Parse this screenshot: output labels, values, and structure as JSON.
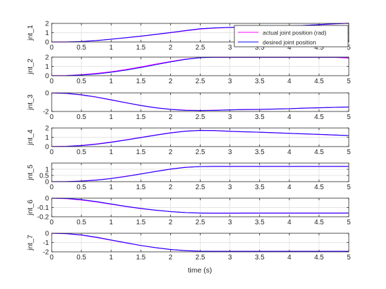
{
  "figure": {
    "background": "#ffffff",
    "axes_color": "#262626",
    "grid_color": "#dcdcdc"
  },
  "legend": {
    "placement": "top-right of first axes",
    "entries": [
      {
        "label": "actual joint position (rad)",
        "color": "#ff00ff"
      },
      {
        "label": "desired joint position",
        "color": "#0000ff"
      }
    ]
  },
  "chart_data": {
    "type": "line",
    "xlabel": "time (s)",
    "xlim": [
      0,
      5
    ],
    "xticks": [
      0,
      0.5,
      1,
      1.5,
      2,
      2.5,
      3,
      3.5,
      4,
      4.5,
      5
    ],
    "xtick_labels": [
      "0",
      "0.5",
      "1",
      "1.5",
      "2",
      "2.5",
      "3",
      "3.5",
      "4",
      "4.5",
      "5"
    ],
    "grid": true,
    "x": [
      0,
      0.25,
      0.5,
      0.75,
      1,
      1.25,
      1.5,
      1.75,
      2,
      2.25,
      2.5,
      2.75,
      3,
      3.25,
      3.5,
      3.75,
      4,
      4.25,
      4.5,
      4.75,
      5
    ],
    "subplots": [
      {
        "ylabel": "jnt_1",
        "ylim": [
          0,
          2
        ],
        "yticks": [
          0,
          1,
          2
        ],
        "ytick_labels": [
          "0",
          "1",
          "2"
        ],
        "series": [
          {
            "name": "actual joint position (rad)",
            "color": "#ff00ff",
            "values": [
              0,
              0,
              0.05,
              0.15,
              0.3,
              0.45,
              0.62,
              0.8,
              1.0,
              1.2,
              1.4,
              1.5,
              1.56,
              1.58,
              1.62,
              1.66,
              1.72,
              1.78,
              1.86,
              1.94,
              2.02
            ]
          },
          {
            "name": "desired joint position",
            "color": "#0000ff",
            "values": [
              0,
              0,
              0.05,
              0.15,
              0.3,
              0.46,
              0.63,
              0.82,
              1.02,
              1.23,
              1.43,
              1.52,
              1.57,
              1.59,
              1.63,
              1.67,
              1.73,
              1.79,
              1.87,
              1.95,
              2.02
            ]
          }
        ]
      },
      {
        "ylabel": "jnt_2",
        "ylim": [
          0,
          2
        ],
        "yticks": [
          0,
          1,
          2
        ],
        "ytick_labels": [
          "0",
          "1",
          "2"
        ],
        "series": [
          {
            "name": "actual joint position (rad)",
            "color": "#ff00ff",
            "values": [
              0,
              0.02,
              0.1,
              0.24,
              0.42,
              0.66,
              0.94,
              1.24,
              1.52,
              1.78,
              1.95,
              1.98,
              1.98,
              1.98,
              1.98,
              1.98,
              1.98,
              1.98,
              1.98,
              1.98,
              1.9
            ]
          },
          {
            "name": "desired joint position",
            "color": "#0000ff",
            "values": [
              0,
              0.01,
              0.07,
              0.19,
              0.37,
              0.6,
              0.88,
              1.18,
              1.48,
              1.75,
              1.94,
              1.98,
              1.98,
              1.98,
              1.98,
              1.98,
              1.98,
              1.98,
              1.98,
              1.98,
              1.98
            ]
          }
        ]
      },
      {
        "ylabel": "jnt_3",
        "ylim": [
          -2,
          0
        ],
        "yticks": [
          -2,
          0
        ],
        "ytick_labels": [
          "-2",
          "0"
        ],
        "series": [
          {
            "name": "actual joint position (rad)",
            "color": "#ff00ff",
            "values": [
              0,
              -0.06,
              -0.22,
              -0.46,
              -0.76,
              -1.07,
              -1.36,
              -1.6,
              -1.77,
              -1.86,
              -1.9,
              -1.87,
              -1.82,
              -1.79,
              -1.78,
              -1.74,
              -1.7,
              -1.64,
              -1.6,
              -1.56,
              -1.52
            ]
          },
          {
            "name": "desired joint position",
            "color": "#0000ff",
            "values": [
              0,
              -0.05,
              -0.2,
              -0.44,
              -0.74,
              -1.05,
              -1.35,
              -1.6,
              -1.78,
              -1.88,
              -1.9,
              -1.88,
              -1.83,
              -1.8,
              -1.78,
              -1.74,
              -1.7,
              -1.64,
              -1.6,
              -1.56,
              -1.52
            ]
          }
        ]
      },
      {
        "ylabel": "jnt_4",
        "ylim": [
          0,
          2
        ],
        "yticks": [
          0,
          1,
          2
        ],
        "ytick_labels": [
          "0",
          "1",
          "2"
        ],
        "series": [
          {
            "name": "actual joint position (rad)",
            "color": "#ff00ff",
            "values": [
              0,
              0.03,
              0.12,
              0.28,
              0.48,
              0.72,
              0.98,
              1.24,
              1.48,
              1.66,
              1.74,
              1.71,
              1.64,
              1.58,
              1.54,
              1.48,
              1.42,
              1.36,
              1.3,
              1.24,
              1.18
            ]
          },
          {
            "name": "desired joint position",
            "color": "#0000ff",
            "values": [
              0,
              0.02,
              0.1,
              0.25,
              0.45,
              0.7,
              0.96,
              1.22,
              1.46,
              1.65,
              1.74,
              1.72,
              1.65,
              1.59,
              1.55,
              1.49,
              1.43,
              1.37,
              1.31,
              1.25,
              1.19
            ]
          }
        ]
      },
      {
        "ylabel": "jnt_5",
        "ylim": [
          0,
          1.5
        ],
        "yticks": [
          0,
          0.5,
          1
        ],
        "ytick_labels": [
          "0",
          "0.5",
          "1"
        ],
        "series": [
          {
            "name": "actual joint position (rad)",
            "color": "#ff00ff",
            "values": [
              0,
              0.01,
              0.05,
              0.13,
              0.26,
              0.43,
              0.63,
              0.83,
              1.02,
              1.16,
              1.22,
              1.23,
              1.23,
              1.23,
              1.23,
              1.23,
              1.23,
              1.23,
              1.23,
              1.23,
              1.23
            ]
          },
          {
            "name": "desired joint position",
            "color": "#0000ff",
            "values": [
              0,
              0.01,
              0.04,
              0.12,
              0.25,
              0.42,
              0.62,
              0.82,
              1.01,
              1.15,
              1.22,
              1.23,
              1.23,
              1.23,
              1.23,
              1.23,
              1.23,
              1.23,
              1.23,
              1.23,
              1.23
            ]
          }
        ]
      },
      {
        "ylabel": "jnt_6",
        "ylim": [
          -0.2,
          0
        ],
        "yticks": [
          -0.2,
          -0.1,
          0
        ],
        "ytick_labels": [
          "-0.2",
          "-0.1",
          "0"
        ],
        "series": [
          {
            "name": "actual joint position (rad)",
            "color": "#ff00ff",
            "values": [
              0,
              -0.005,
              -0.02,
              -0.04,
              -0.065,
              -0.09,
              -0.112,
              -0.13,
              -0.145,
              -0.155,
              -0.16,
              -0.161,
              -0.161,
              -0.16,
              -0.16,
              -0.16,
              -0.16,
              -0.16,
              -0.16,
              -0.16,
              -0.16
            ]
          },
          {
            "name": "desired joint position",
            "color": "#0000ff",
            "values": [
              0,
              -0.003,
              -0.015,
              -0.036,
              -0.062,
              -0.088,
              -0.11,
              -0.129,
              -0.144,
              -0.155,
              -0.16,
              -0.162,
              -0.162,
              -0.161,
              -0.161,
              -0.161,
              -0.161,
              -0.161,
              -0.161,
              -0.161,
              -0.16
            ]
          }
        ]
      },
      {
        "ylabel": "jnt_7",
        "ylim": [
          -2,
          0
        ],
        "yticks": [
          -2,
          -1,
          0
        ],
        "ytick_labels": [
          "-2",
          "-1",
          "0"
        ],
        "series": [
          {
            "name": "actual joint position (rad)",
            "color": "#ff00ff",
            "values": [
              0,
              -0.05,
              -0.2,
              -0.45,
              -0.74,
              -1.04,
              -1.32,
              -1.56,
              -1.75,
              -1.87,
              -1.93,
              -1.94,
              -1.94,
              -1.94,
              -1.94,
              -1.94,
              -1.94,
              -1.94,
              -1.94,
              -1.94,
              -1.94
            ]
          },
          {
            "name": "desired joint position",
            "color": "#0000ff",
            "values": [
              0,
              -0.04,
              -0.18,
              -0.42,
              -0.72,
              -1.02,
              -1.31,
              -1.55,
              -1.74,
              -1.87,
              -1.93,
              -1.94,
              -1.94,
              -1.94,
              -1.94,
              -1.94,
              -1.94,
              -1.94,
              -1.94,
              -1.94,
              -1.94
            ]
          }
        ]
      }
    ]
  }
}
